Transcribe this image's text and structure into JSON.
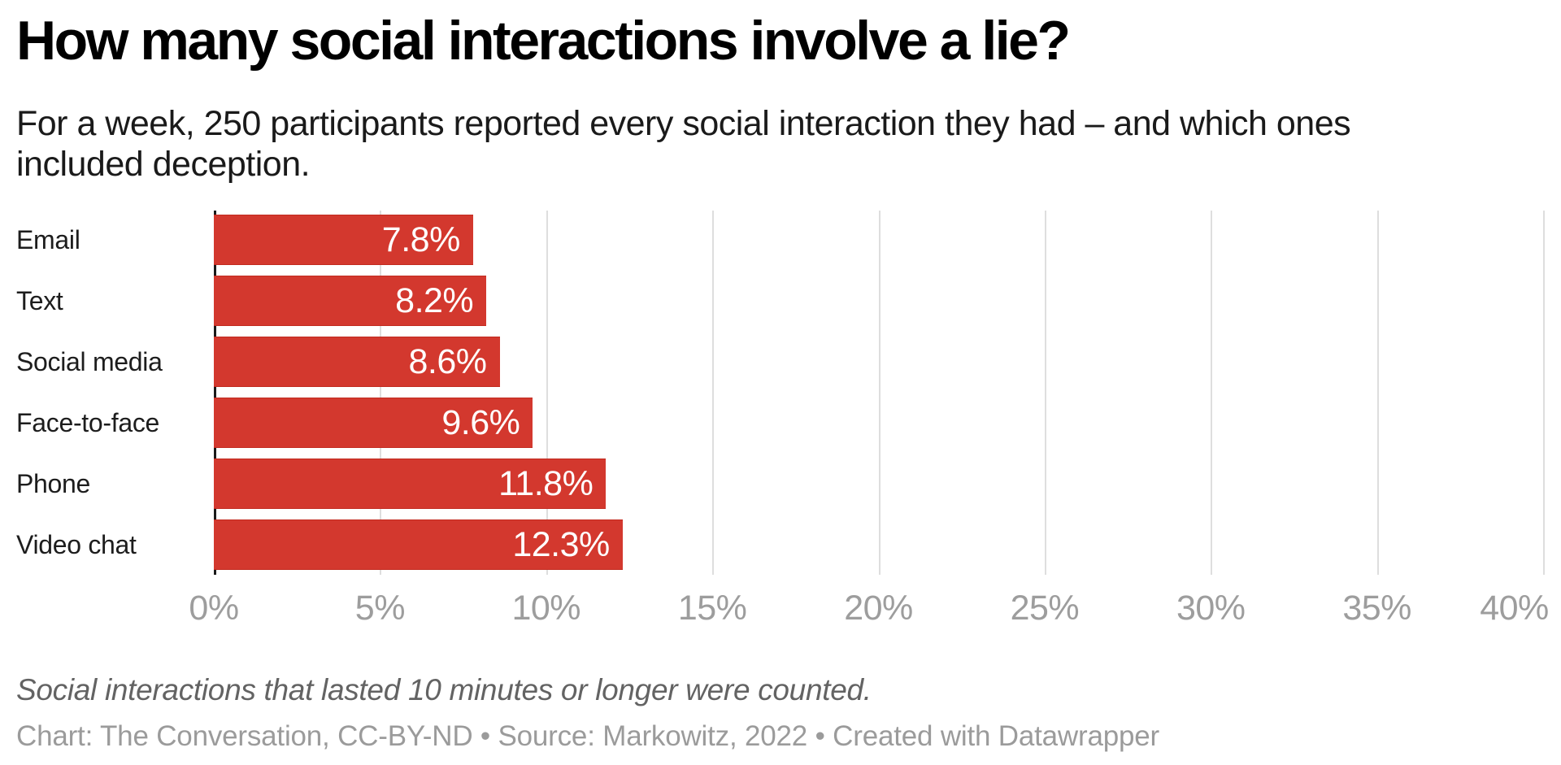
{
  "chart_data": {
    "type": "bar",
    "orientation": "horizontal",
    "title": "How many social interactions involve a lie?",
    "subtitle": "For a week, 250 participants reported every social interaction they had – and which ones included deception.",
    "categories": [
      "Email",
      "Text",
      "Social media",
      "Face-to-face",
      "Phone",
      "Video chat"
    ],
    "values": [
      7.8,
      8.2,
      8.6,
      9.6,
      11.8,
      12.3
    ],
    "value_labels": [
      "7.8%",
      "8.2%",
      "8.6%",
      "9.6%",
      "11.8%",
      "12.3%"
    ],
    "xlabel": "",
    "ylabel": "",
    "xlim": [
      0,
      40
    ],
    "tick_interval": 5,
    "tick_labels": [
      "0%",
      "5%",
      "10%",
      "15%",
      "20%",
      "25%",
      "30%",
      "35%",
      "40%"
    ],
    "grid": "vertical",
    "legend": "none",
    "bar_color": "#d3382e",
    "note": "Social interactions that lasted 10 minutes or longer were counted.",
    "byline": "Chart: The Conversation, CC-BY-ND • Source: Markowitz, 2022 • Created with Datawrapper"
  },
  "colors": {
    "background": "#ffffff",
    "bar": "#d3382e",
    "bar_value_text": "#ffffff",
    "title_text": "#000000",
    "subtitle_text": "#1a1a1a",
    "category_text": "#1d1d1d",
    "axis_tick_text": "#9d9d9d",
    "gridline": "#dedede",
    "baseline": "#1a1a1a",
    "note_text": "#636363",
    "byline_text": "#9b9b9b"
  }
}
